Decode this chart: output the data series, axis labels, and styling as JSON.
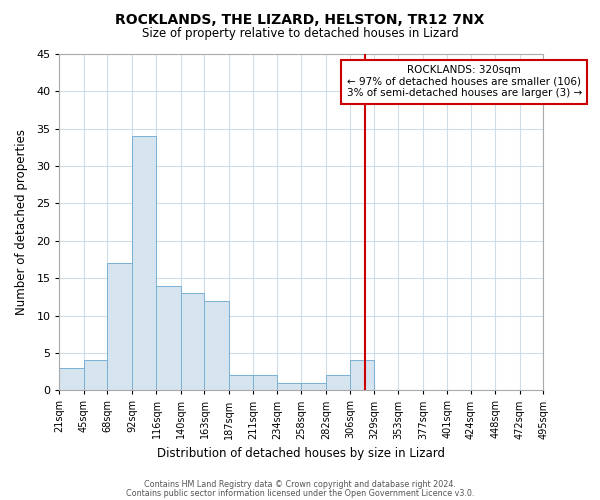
{
  "title": "ROCKLANDS, THE LIZARD, HELSTON, TR12 7NX",
  "subtitle": "Size of property relative to detached houses in Lizard",
  "xlabel": "Distribution of detached houses by size in Lizard",
  "ylabel": "Number of detached properties",
  "bar_color": "#d6e4f0",
  "bar_edge_color": "#7aafd4",
  "background_color": "#ffffff",
  "plot_bg_color": "#ffffff",
  "grid_color": "#d0dce8",
  "vline_x": 320,
  "vline_color": "#cc0000",
  "annotation_title": "ROCKLANDS: 320sqm",
  "annotation_line1": "← 97% of detached houses are smaller (106)",
  "annotation_line2": "3% of semi-detached houses are larger (3) →",
  "annotation_box_color": "#cc0000",
  "bin_edges": [
    21,
    45,
    68,
    92,
    116,
    140,
    163,
    187,
    211,
    234,
    258,
    282,
    306,
    329,
    353,
    377,
    401,
    424,
    448,
    472,
    495
  ],
  "bin_counts": [
    3,
    4,
    17,
    34,
    14,
    13,
    12,
    2,
    2,
    1,
    1,
    2,
    4,
    0,
    0,
    0,
    0,
    0,
    0,
    0
  ],
  "tick_labels": [
    "21sqm",
    "45sqm",
    "68sqm",
    "92sqm",
    "116sqm",
    "140sqm",
    "163sqm",
    "187sqm",
    "211sqm",
    "234sqm",
    "258sqm",
    "282sqm",
    "306sqm",
    "329sqm",
    "353sqm",
    "377sqm",
    "401sqm",
    "424sqm",
    "448sqm",
    "472sqm",
    "495sqm"
  ],
  "ylim": [
    0,
    45
  ],
  "yticks": [
    0,
    5,
    10,
    15,
    20,
    25,
    30,
    35,
    40,
    45
  ],
  "footer_line1": "Contains HM Land Registry data © Crown copyright and database right 2024.",
  "footer_line2": "Contains public sector information licensed under the Open Government Licence v3.0."
}
